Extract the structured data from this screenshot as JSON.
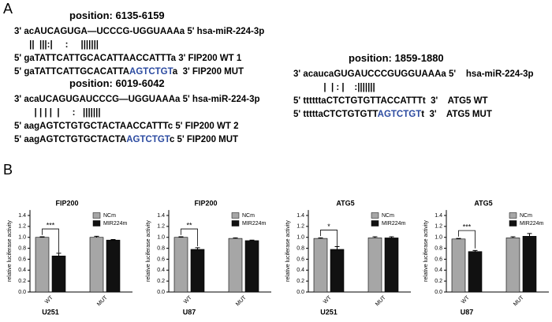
{
  "panel_labels": [
    "A",
    "B"
  ],
  "alignments": [
    {
      "position": "position: 6135-6159",
      "lines": [
        [
          {
            "text": "3' acAUCAGUGA—UCCCG-UGGUAAAa 5' hsa-miR-224-3p"
          }
        ],
        [
          {
            "text": "      ||  |||:|     :     |||||||"
          }
        ],
        [
          {
            "text": "5' gaTATTCATTGCACATTAACCATTTa 3' FIP200 WT 1"
          }
        ],
        [
          {
            "text": "5' gaTATTCATTGCACATTA"
          },
          {
            "text": "AGTCTGT",
            "color": "#2b4aa0"
          },
          {
            "text": "a  3' FIP200 MUT"
          }
        ]
      ]
    },
    {
      "position": "position: 6019-6042",
      "lines": [
        [
          {
            "text": "3' acaUCAGUGAUCCCG—UGGUAAAa 5' hsa-miR-224-3p"
          }
        ],
        [
          {
            "text": "        | | | |  |     :   |||||||"
          }
        ],
        [
          {
            "text": "5' aagAGTCTGTGCTACTAACCATTTc 5' FIP200 WT 2"
          }
        ],
        [
          {
            "text": "5' aagAGTCTGTGCTACTA"
          },
          {
            "text": "AGTCTGT",
            "color": "#2b4aa0"
          },
          {
            "text": "c 5' FIP200 MUT"
          }
        ]
      ]
    },
    {
      "position": "position: 1859-1880",
      "lines": [
        [
          {
            "text": "3' acaucaGUGAUCCCGUGGUAAAa 5'    hsa-miR-224-3p"
          }
        ],
        [
          {
            "text": "            |  | : |    :|||||||"
          }
        ],
        [
          {
            "text": "5' ttttttaCTCTGTGTTACCATTTt  3'    ATG5 WT"
          }
        ],
        [
          {
            "text": "5' tttttaCTCTGTGTT"
          },
          {
            "text": "AGTCTGT",
            "color": "#2b4aa0"
          },
          {
            "text": "t  3'    ATG5 MUT"
          }
        ]
      ]
    }
  ],
  "chart_data": [
    {
      "type": "bar",
      "title": "FIP200",
      "y_label": "relative luciferase activity",
      "x_label": "U251",
      "categories": [
        "WT",
        "MUT"
      ],
      "ylim": [
        0,
        1.5
      ],
      "yticks": [
        {
          "value": 0,
          "label": "0.0"
        },
        0.2,
        0.4,
        0.6,
        0.8,
        {
          "value": 1,
          "label": "1.0"
        },
        1.2,
        1.4
      ],
      "series": [
        {
          "name": "NCm",
          "color": "#a6a6a6",
          "values": [
            1.0,
            1.0
          ],
          "errors": [
            0.01,
            0.02
          ]
        },
        {
          "name": "MIR224m",
          "color": "#111111",
          "values": [
            0.66,
            0.95
          ],
          "errors": [
            0.05,
            0.01
          ]
        }
      ],
      "annotation": "***"
    },
    {
      "type": "bar",
      "title": "FIP200",
      "y_label": "relative luciferase activity",
      "x_label": "U87",
      "categories": [
        "WT",
        "MUT"
      ],
      "ylim": [
        0,
        1.5
      ],
      "yticks": [
        {
          "value": 0,
          "label": "0.0"
        },
        0.2,
        0.4,
        0.6,
        0.8,
        {
          "value": 1,
          "label": "1.0"
        },
        1.2,
        1.4
      ],
      "series": [
        {
          "name": "NCm",
          "color": "#a6a6a6",
          "values": [
            1.0,
            0.98
          ],
          "errors": [
            0.01,
            0.01
          ]
        },
        {
          "name": "MIR224m",
          "color": "#111111",
          "values": [
            0.78,
            0.94
          ],
          "errors": [
            0.03,
            0.01
          ]
        }
      ],
      "annotation": "**"
    },
    {
      "type": "bar",
      "title": "ATG5",
      "y_label": "relative luciferase activity",
      "x_label": "U251",
      "categories": [
        "WT",
        "MUT"
      ],
      "ylim": [
        0,
        1.5
      ],
      "yticks": [
        {
          "value": 0,
          "label": "0.0"
        },
        0.2,
        0.4,
        0.6,
        0.8,
        {
          "value": 1,
          "label": "1.0"
        },
        1.2,
        1.4
      ],
      "series": [
        {
          "name": "NCm",
          "color": "#a6a6a6",
          "values": [
            0.98,
            0.99
          ],
          "errors": [
            0.01,
            0.02
          ]
        },
        {
          "name": "MIR224m",
          "color": "#111111",
          "values": [
            0.78,
            0.99
          ],
          "errors": [
            0.05,
            0.02
          ]
        }
      ],
      "annotation": "*"
    },
    {
      "type": "bar",
      "title": "ATG5",
      "y_label": "relative luciferase activity",
      "x_label": "U87",
      "categories": [
        "WT",
        "MUT"
      ],
      "ylim": [
        0,
        1.5
      ],
      "yticks": [
        {
          "value": 0,
          "label": "0.0"
        },
        0.2,
        0.4,
        0.6,
        0.8,
        {
          "value": 1,
          "label": "1.0"
        },
        1.2,
        1.4
      ],
      "series": [
        {
          "name": "NCm",
          "color": "#a6a6a6",
          "values": [
            0.97,
            0.99
          ],
          "errors": [
            0.01,
            0.02
          ]
        },
        {
          "name": "MIR224m",
          "color": "#111111",
          "values": [
            0.74,
            1.02
          ],
          "errors": [
            0.02,
            0.05
          ]
        }
      ],
      "annotation": "***"
    }
  ]
}
